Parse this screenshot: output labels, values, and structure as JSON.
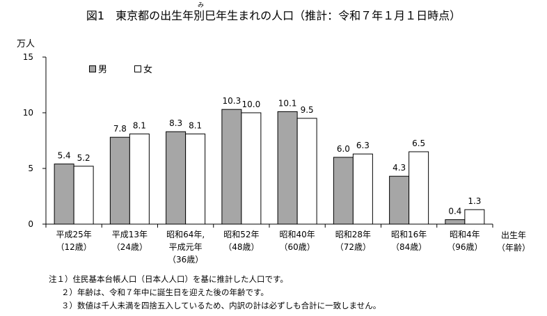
{
  "title": "図1　東京都の出生年別巳年生まれの人口（推計：令和７年１月１日時点）",
  "ruby": "み",
  "chart_data": {
    "type": "bar",
    "title": "図1　東京都の出生年別巳年生まれの人口（推計：令和７年１月１日時点）",
    "ylabel": "万人",
    "xlabel": "出生年\n（年齢）",
    "xlabel_lines": [
      "出生年",
      "（年齢）"
    ],
    "ylim": [
      0,
      15
    ],
    "yticks": [
      0,
      5,
      10,
      15
    ],
    "grid": false,
    "legend_position": "top-left",
    "categories": [
      [
        "平成25年",
        "（12歳）"
      ],
      [
        "平成13年",
        "（24歳）"
      ],
      [
        "昭和64年,",
        "平成元年",
        "（36歳）"
      ],
      [
        "昭和52年",
        "（48歳）"
      ],
      [
        "昭和40年",
        "（60歳）"
      ],
      [
        "昭和28年",
        "（72歳）"
      ],
      [
        "昭和16年",
        "（84歳）"
      ],
      [
        "昭和4年",
        "（96歳）"
      ]
    ],
    "series": [
      {
        "name": "男",
        "color": "#a6a6a6",
        "values": [
          5.4,
          7.8,
          8.3,
          10.3,
          10.1,
          6.0,
          4.3,
          0.4
        ],
        "labels": [
          "5.4",
          "7.8",
          "8.3",
          "10.3",
          "10.1",
          "6.0",
          "4.3",
          "0.4"
        ]
      },
      {
        "name": "女",
        "color": "#ffffff",
        "values": [
          5.2,
          8.1,
          8.1,
          10.0,
          9.5,
          6.3,
          6.5,
          1.3
        ],
        "labels": [
          "5.2",
          "8.1",
          "8.1",
          "10.0",
          "9.5",
          "6.3",
          "6.5",
          "1.3"
        ]
      }
    ]
  },
  "notes": [
    "注１）住民基本台帳人口（日本人人口）を基に推計した人口です。",
    "２）年齢は、令和７年中に誕生日を迎えた後の年齢です。",
    "３）数値は千人未満を四捨五入しているため、内訳の計は必ずしも合計に一致しません。"
  ]
}
